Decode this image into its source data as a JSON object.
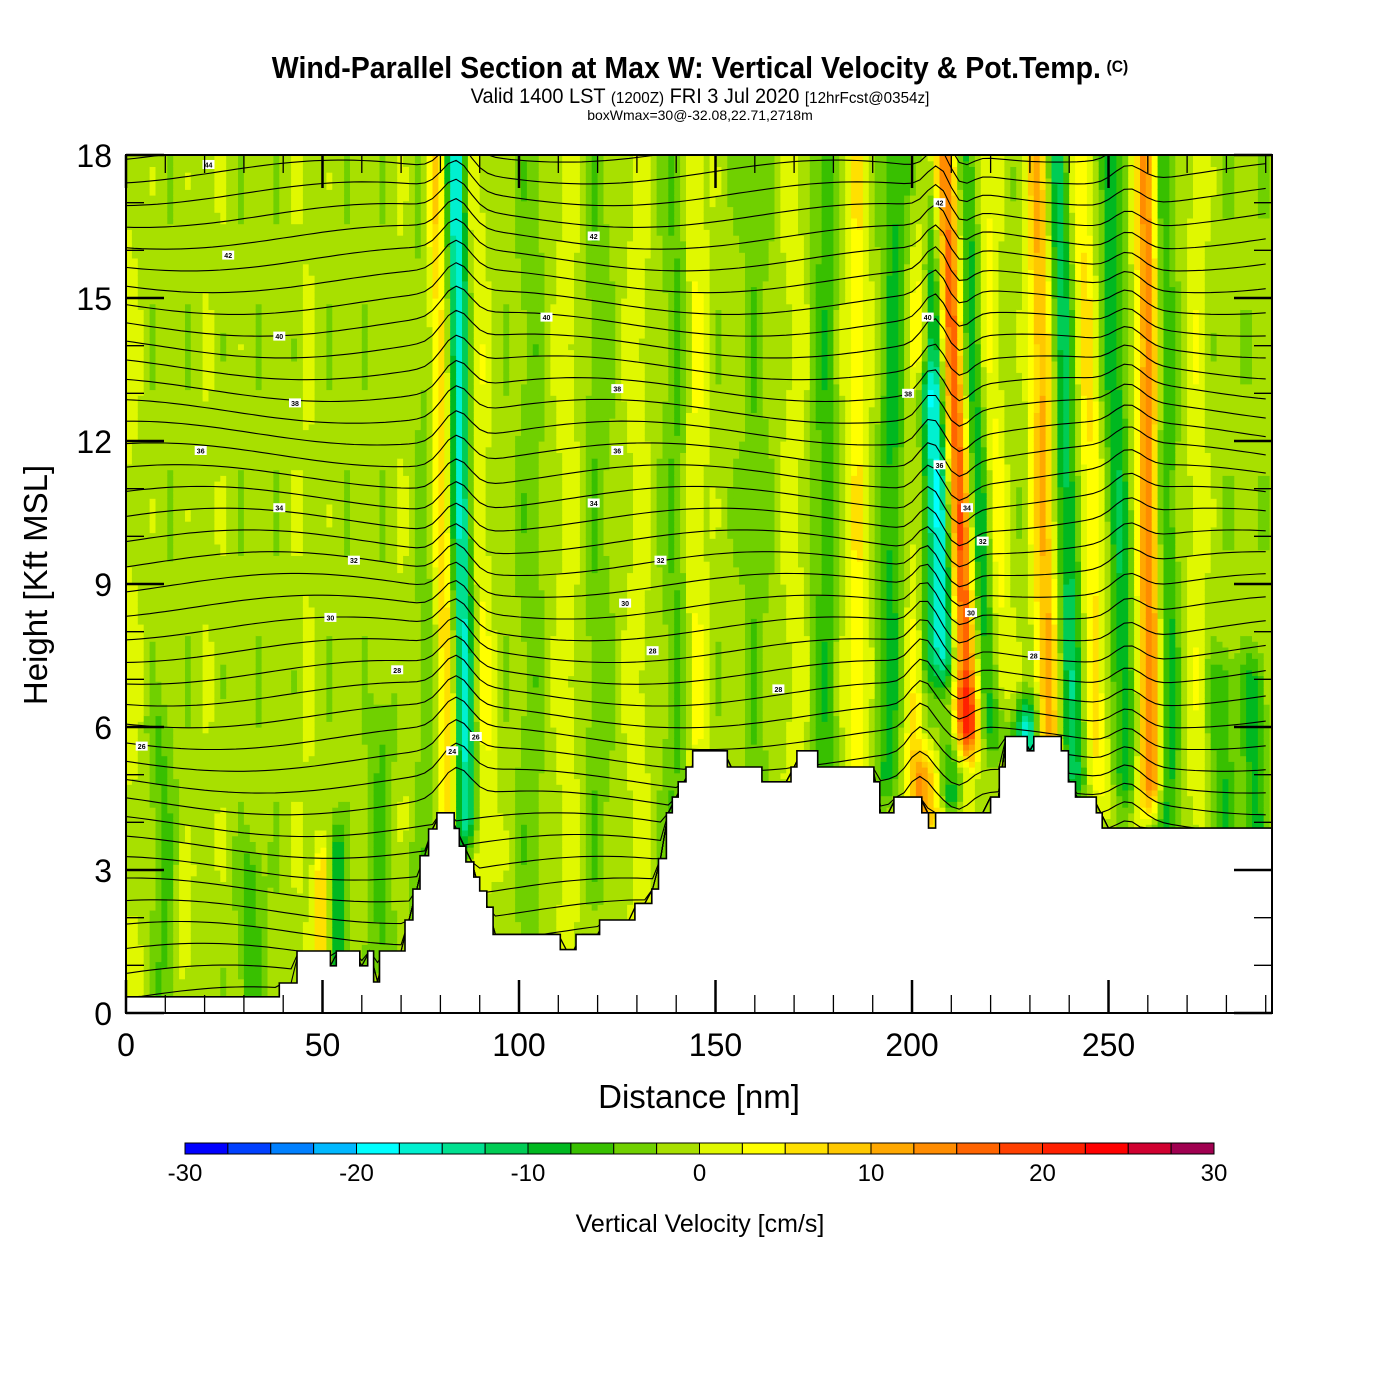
{
  "title": {
    "main": "Wind-Parallel Section at Max W: Vertical Velocity & Pot.Temp.",
    "copyright": "(C)",
    "valid_prefix": "Valid 1400 LST",
    "valid_utc": "(1200Z)",
    "valid_date": "FRI 3 Jul 2020",
    "forecast": "[12hrFcst@0354z]",
    "box_info": "boxWmax=30@-32.08,22.71,2718m"
  },
  "chart_data": {
    "type": "heatmap",
    "title": "Wind-Parallel Section at Max W: Vertical Velocity & Pot.Temp.",
    "xlabel": "Distance [nm]",
    "ylabel": "Height [Kft MSL]",
    "xlim": [
      0,
      291.6
    ],
    "ylim": [
      0,
      18
    ],
    "xticks": [
      0,
      50,
      100,
      150,
      200,
      250
    ],
    "xtick_labels": [
      "0",
      "50",
      "100",
      "150",
      "200",
      "250"
    ],
    "x_minor_step": 10,
    "yticks": [
      0,
      3,
      6,
      9,
      12,
      15,
      18
    ],
    "ytick_labels": [
      "0",
      "3",
      "6",
      "9",
      "12",
      "15",
      "18"
    ],
    "y_minor_step": 1,
    "grid": false,
    "colorbar": {
      "title": "Vertical Velocity [cm/s]",
      "min": -30,
      "max": 30,
      "step": 2.5,
      "tick_values": [
        -30,
        -20,
        -10,
        0,
        10,
        20,
        30
      ],
      "tick_labels": [
        "-30",
        "-20",
        "-10",
        "0",
        "10",
        "20",
        "30"
      ],
      "colors": [
        "#0000ff",
        "#0040ff",
        "#0080ff",
        "#00b8ff",
        "#00ffff",
        "#00f0d0",
        "#00e090",
        "#00cc55",
        "#00b820",
        "#38c000",
        "#70d000",
        "#a8e000",
        "#e0f800",
        "#ffff00",
        "#ffe000",
        "#ffc800",
        "#ffa800",
        "#ff8c00",
        "#ff6400",
        "#ff4000",
        "#ff2000",
        "#ff0000",
        "#d00030",
        "#a00050"
      ],
      "placement": "bottom"
    },
    "field": {
      "variable": "Vertical Velocity",
      "units": "cm/s",
      "background_value": -1.5,
      "features": [
        {
          "x_bottom": 2,
          "x_top": 1,
          "width": 3,
          "value": 2,
          "z_min": 0,
          "z_max": 18
        },
        {
          "x_bottom": 10,
          "x_top": 6,
          "width": 3,
          "value": -4,
          "z_min": 0,
          "z_max": 6
        },
        {
          "x_bottom": 15,
          "x_top": 15,
          "width": 2,
          "value": 3,
          "z_min": 0,
          "z_max": 3
        },
        {
          "x_bottom": 22,
          "x_top": 22,
          "width": 3,
          "value": 1,
          "z_min": 3,
          "z_max": 18
        },
        {
          "x_bottom": 32,
          "x_top": 32,
          "width": 3,
          "value": -5,
          "z_min": 0,
          "z_max": 3
        },
        {
          "x_bottom": 46,
          "x_top": 46,
          "width": 3,
          "value": 1.5,
          "z_min": 0,
          "z_max": 18
        },
        {
          "x_bottom": 50,
          "x_top": 48,
          "width": 2,
          "value": 8,
          "z_min": 1,
          "z_max": 3
        },
        {
          "x_bottom": 54,
          "x_top": 52,
          "width": 2,
          "value": -8,
          "z_min": 1,
          "z_max": 3.5
        },
        {
          "x_bottom": 65,
          "x_top": 65,
          "width": 3,
          "value": -4,
          "z_min": 1.3,
          "z_max": 6
        },
        {
          "x_bottom": 72,
          "x_top": 72,
          "width": 3,
          "value": 2,
          "z_min": 4,
          "z_max": 18
        },
        {
          "x_bottom": 80,
          "x_top": 79,
          "width": 6,
          "value": -5,
          "z_min": 2,
          "z_max": 18
        },
        {
          "x_bottom": 83,
          "x_top": 79,
          "width": 3,
          "value": 14,
          "z_min": 4.2,
          "z_max": 18
        },
        {
          "x_bottom": 87,
          "x_top": 84,
          "width": 3,
          "value": -14,
          "z_min": 4,
          "z_max": 18
        },
        {
          "x_bottom": 92,
          "x_top": 88,
          "width": 3,
          "value": 5,
          "z_min": 3,
          "z_max": 18
        },
        {
          "x_bottom": 103,
          "x_top": 103,
          "width": 3,
          "value": -3,
          "z_min": 2,
          "z_max": 18
        },
        {
          "x_bottom": 112,
          "x_top": 112,
          "width": 3,
          "value": 3,
          "z_min": 1.4,
          "z_max": 18
        },
        {
          "x_bottom": 120,
          "x_top": 120,
          "width": 3,
          "value": -3,
          "z_min": 3,
          "z_max": 18
        },
        {
          "x_bottom": 130,
          "x_top": 130,
          "width": 3,
          "value": 3,
          "z_min": 2,
          "z_max": 18
        },
        {
          "x_bottom": 140,
          "x_top": 140,
          "width": 3,
          "value": -4,
          "z_min": 4,
          "z_max": 18
        },
        {
          "x_bottom": 145,
          "x_top": 145,
          "width": 3,
          "value": 4,
          "z_min": 5,
          "z_max": 18
        },
        {
          "x_bottom": 160,
          "x_top": 160,
          "width": 3,
          "value": -3,
          "z_min": 5,
          "z_max": 18
        },
        {
          "x_bottom": 170,
          "x_top": 170,
          "width": 3,
          "value": 3,
          "z_min": 5,
          "z_max": 18
        },
        {
          "x_bottom": 178,
          "x_top": 178,
          "width": 3,
          "value": -5,
          "z_min": 5,
          "z_max": 18
        },
        {
          "x_bottom": 186,
          "x_top": 186,
          "width": 3,
          "value": 6,
          "z_min": 5,
          "z_max": 18
        },
        {
          "x_bottom": 193,
          "x_top": 196,
          "width": 3,
          "value": -7,
          "z_min": 5,
          "z_max": 18
        },
        {
          "x_bottom": 201,
          "x_top": 203,
          "width": 3,
          "value": 12,
          "z_min": 4.2,
          "z_max": 18
        },
        {
          "x_bottom": 203,
          "x_top": 203,
          "width": 3,
          "value": -12,
          "z_min": 6,
          "z_max": 13
        },
        {
          "x_bottom": 212,
          "x_top": 204,
          "width": 3.5,
          "value": -18,
          "z_min": 4.5,
          "z_max": 18
        },
        {
          "x_bottom": 217,
          "x_top": 208,
          "width": 3.5,
          "value": 22,
          "z_min": 6,
          "z_max": 18
        },
        {
          "x_bottom": 209,
          "x_top": 209,
          "width": 6,
          "value": 12,
          "z_min": 4.2,
          "z_max": 6.5
        },
        {
          "x_bottom": 222,
          "x_top": 213,
          "width": 3,
          "value": -10,
          "z_min": 6,
          "z_max": 18
        },
        {
          "x_bottom": 229,
          "x_top": 229,
          "width": 3,
          "value": -16,
          "z_min": 4.2,
          "z_max": 6
        },
        {
          "x_bottom": 226,
          "x_top": 218,
          "width": 3,
          "value": 5,
          "z_min": 7,
          "z_max": 18
        },
        {
          "x_bottom": 236,
          "x_top": 232,
          "width": 3,
          "value": 12,
          "z_min": 5,
          "z_max": 18
        },
        {
          "x_bottom": 243,
          "x_top": 237,
          "width": 3,
          "value": -10,
          "z_min": 5,
          "z_max": 18
        },
        {
          "x_bottom": 249,
          "x_top": 243,
          "width": 3,
          "value": 7,
          "z_min": 5,
          "z_max": 18
        },
        {
          "x_bottom": 256,
          "x_top": 250,
          "width": 3,
          "value": -8,
          "z_min": 5,
          "z_max": 18
        },
        {
          "x_bottom": 261,
          "x_top": 260,
          "width": 3,
          "value": 17,
          "z_min": 4.8,
          "z_max": 18
        },
        {
          "x_bottom": 266,
          "x_top": 263,
          "width": 3,
          "value": -8,
          "z_min": 4,
          "z_max": 18
        },
        {
          "x_bottom": 272,
          "x_top": 272,
          "width": 3,
          "value": 3,
          "z_min": 4,
          "z_max": 18
        },
        {
          "x_bottom": 279,
          "x_top": 279,
          "width": 3,
          "value": -6,
          "z_min": 3.9,
          "z_max": 7
        },
        {
          "x_bottom": 287,
          "x_top": 287,
          "width": 3,
          "value": -7,
          "z_min": 3.9,
          "z_max": 7
        }
      ]
    },
    "terrain": {
      "units": "kft",
      "distance": [
        0,
        39,
        39,
        43.5,
        43.5,
        52,
        52,
        53.5,
        53.5,
        59.5,
        59.5,
        61.5,
        61.5,
        63,
        63,
        64.5,
        64.5,
        71,
        71,
        73,
        73,
        74.8,
        74.8,
        77,
        77,
        79.1,
        79.1,
        83.5,
        83.5,
        84.8,
        84.8,
        86.5,
        86.5,
        88.5,
        88.5,
        90,
        90,
        91.8,
        91.8,
        93.4,
        93.4,
        95.2,
        95.2,
        97.2,
        97.2,
        99.5,
        99.5,
        110.5,
        110.5,
        114.5,
        114.5,
        120.5,
        120.5,
        122.5,
        122.5,
        129.5,
        129.5,
        133.8,
        133.8,
        135.5,
        135.5,
        137.5,
        137.5,
        139,
        139,
        140.5,
        140.5,
        142.5,
        142.5,
        144.2,
        144.2,
        146,
        146,
        153,
        153,
        161.8,
        161.8,
        169.2,
        169.2,
        170.7,
        170.7,
        176,
        176,
        190.3,
        190.3,
        191.8,
        191.8,
        195.4,
        195.4,
        202.5,
        202.5,
        204.2,
        204.2,
        206,
        206,
        220,
        220,
        222.2,
        222.2,
        223.7,
        223.7,
        229.3,
        229.3,
        231,
        231,
        238,
        238,
        239.8,
        239.8,
        241.6,
        241.6,
        246.9,
        246.9,
        248.4,
        248.4,
        251.8,
        251.8,
        291.6
      ],
      "height": [
        0.34,
        0.34,
        0.63,
        0.63,
        1.3,
        1.3,
        0.99,
        0.99,
        1.3,
        1.3,
        0.99,
        0.99,
        1.3,
        1.3,
        0.65,
        0.65,
        1.3,
        1.3,
        1.95,
        1.95,
        2.6,
        2.6,
        3.3,
        3.3,
        3.86,
        3.86,
        4.2,
        4.2,
        3.87,
        3.87,
        3.5,
        3.5,
        3.17,
        3.17,
        2.85,
        2.85,
        2.56,
        2.56,
        2.22,
        2.22,
        1.65,
        1.65,
        1.65,
        1.65,
        1.65,
        1.65,
        1.65,
        1.65,
        1.33,
        1.33,
        1.65,
        1.65,
        1.95,
        1.95,
        1.95,
        1.95,
        2.3,
        2.3,
        2.6,
        2.6,
        3.24,
        3.24,
        4.2,
        4.2,
        4.53,
        4.53,
        4.85,
        4.85,
        5.16,
        5.16,
        5.5,
        5.5,
        5.5,
        5.5,
        5.16,
        5.16,
        4.85,
        4.85,
        5.16,
        5.16,
        5.5,
        5.5,
        5.16,
        5.16,
        4.85,
        4.85,
        4.2,
        4.2,
        4.53,
        4.53,
        4.2,
        4.2,
        3.88,
        3.88,
        4.2,
        4.2,
        4.53,
        4.53,
        5.16,
        5.16,
        5.8,
        5.8,
        5.5,
        5.5,
        5.8,
        5.8,
        5.5,
        5.5,
        4.85,
        4.85,
        4.53,
        4.53,
        4.2,
        4.2,
        3.88,
        3.88,
        3.88,
        3.88
      ]
    },
    "isentropes": {
      "variable": "Pot.Temp.",
      "levels_bottom": 20,
      "levels_top": 45,
      "interval": 1,
      "labels": [
        {
          "value": "44",
          "x": 21,
          "z": 17.8
        },
        {
          "value": "42",
          "x": 26,
          "z": 15.9
        },
        {
          "value": "42",
          "x": 119,
          "z": 16.3
        },
        {
          "value": "40",
          "x": 107,
          "z": 14.6
        },
        {
          "value": "40",
          "x": 39,
          "z": 14.2
        },
        {
          "value": "38",
          "x": 43,
          "z": 12.8
        },
        {
          "value": "38",
          "x": 125,
          "z": 13.1
        },
        {
          "value": "38",
          "x": 199,
          "z": 13.0
        },
        {
          "value": "36",
          "x": 19,
          "z": 11.8
        },
        {
          "value": "36",
          "x": 125,
          "z": 11.8
        },
        {
          "value": "36",
          "x": 207,
          "z": 11.5
        },
        {
          "value": "34",
          "x": 39,
          "z": 10.6
        },
        {
          "value": "34",
          "x": 119,
          "z": 10.7
        },
        {
          "value": "34",
          "x": 214,
          "z": 10.6
        },
        {
          "value": "32",
          "x": 58,
          "z": 9.5
        },
        {
          "value": "32",
          "x": 136,
          "z": 9.5
        },
        {
          "value": "32",
          "x": 218,
          "z": 9.9
        },
        {
          "value": "30",
          "x": 52,
          "z": 8.3
        },
        {
          "value": "30",
          "x": 127,
          "z": 8.6
        },
        {
          "value": "30",
          "x": 215,
          "z": 8.4
        },
        {
          "value": "28",
          "x": 69,
          "z": 7.2
        },
        {
          "value": "28",
          "x": 134,
          "z": 7.6
        },
        {
          "value": "28",
          "x": 231,
          "z": 7.5
        },
        {
          "value": "28",
          "x": 166,
          "z": 6.8
        },
        {
          "value": "26",
          "x": 4,
          "z": 5.6
        },
        {
          "value": "24",
          "x": 83,
          "z": 5.5
        },
        {
          "value": "26",
          "x": 89,
          "z": 5.8
        },
        {
          "value": "40",
          "x": 204,
          "z": 14.6
        },
        {
          "value": "42",
          "x": 207,
          "z": 17.0
        }
      ]
    }
  }
}
